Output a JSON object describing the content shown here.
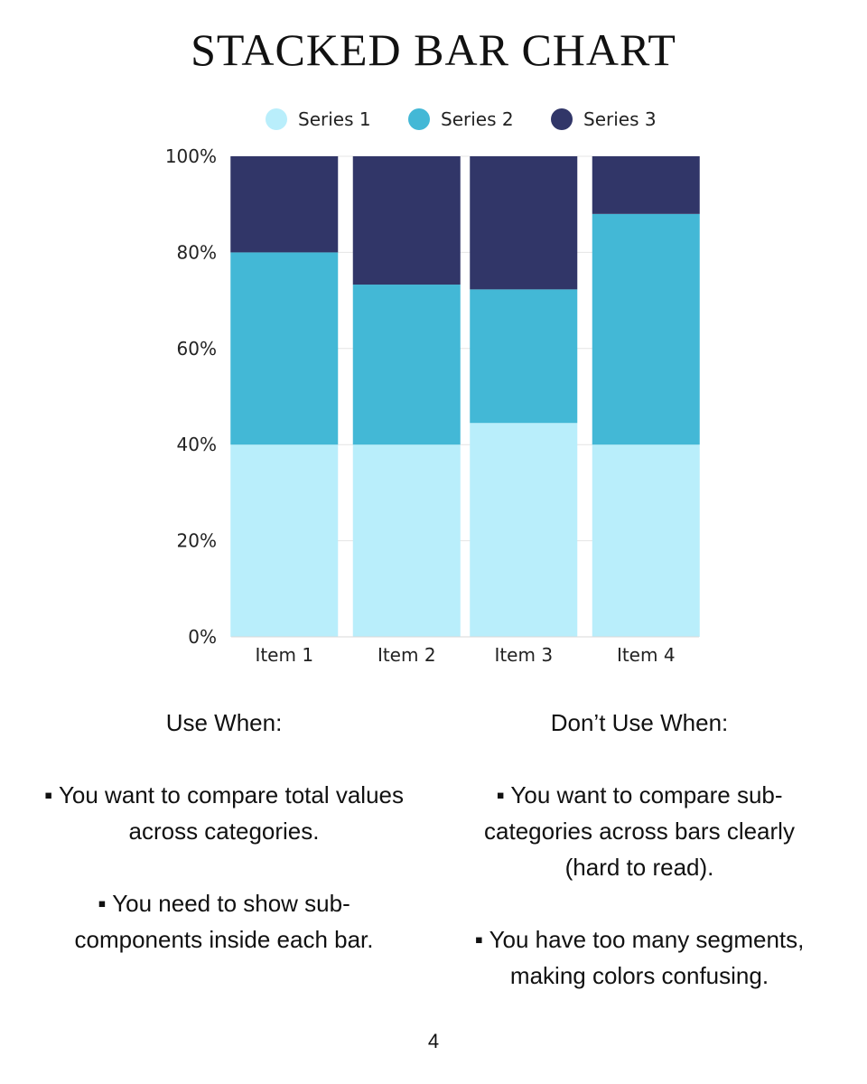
{
  "page_title": "STACKED BAR CHART",
  "chart_data": {
    "type": "bar",
    "stacked": true,
    "categories": [
      "Item 1",
      "Item 2",
      "Item 3",
      "Item 4"
    ],
    "series": [
      {
        "name": "Series 1",
        "color": "#b9eefb",
        "values": [
          40,
          40,
          44.5,
          40
        ]
      },
      {
        "name": "Series 2",
        "color": "#43b8d6",
        "values": [
          40,
          33.3,
          27.8,
          48
        ]
      },
      {
        "name": "Series 3",
        "color": "#313668",
        "values": [
          20,
          26.7,
          27.7,
          12
        ]
      }
    ],
    "yticks": [
      "0%",
      "20%",
      "40%",
      "60%",
      "80%",
      "100%"
    ],
    "ylim": [
      0,
      100
    ],
    "grid": true,
    "legend_position": "top"
  },
  "use_when": {
    "heading": "Use When:",
    "items": [
      "▪ You want to compare total values across categories.",
      "▪ You need to show sub-components inside each bar."
    ]
  },
  "dont_use_when": {
    "heading": "Don’t Use When:",
    "items": [
      "▪ You want to compare sub-categories across bars clearly (hard to read).",
      "▪ You have too many segments, making colors confusing."
    ]
  },
  "page_number": "4"
}
